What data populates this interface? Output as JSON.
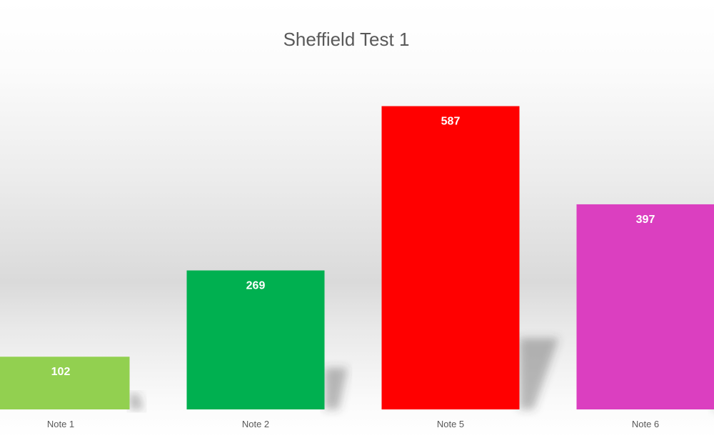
{
  "chart_data": {
    "type": "bar",
    "title": "Sheffield Test 1",
    "xlabel": "",
    "ylabel": "",
    "categories": [
      "Note 1",
      "Note 2",
      "Note 5",
      "Note 6"
    ],
    "values": [
      102,
      269,
      587,
      397
    ],
    "colors": [
      "#92d050",
      "#00b050",
      "#ff0000",
      "#db3fc0"
    ],
    "label_color": "#ffffff",
    "ylim": [
      0,
      650
    ],
    "grid": false,
    "legend": "none",
    "data_labels": "inside-end"
  }
}
